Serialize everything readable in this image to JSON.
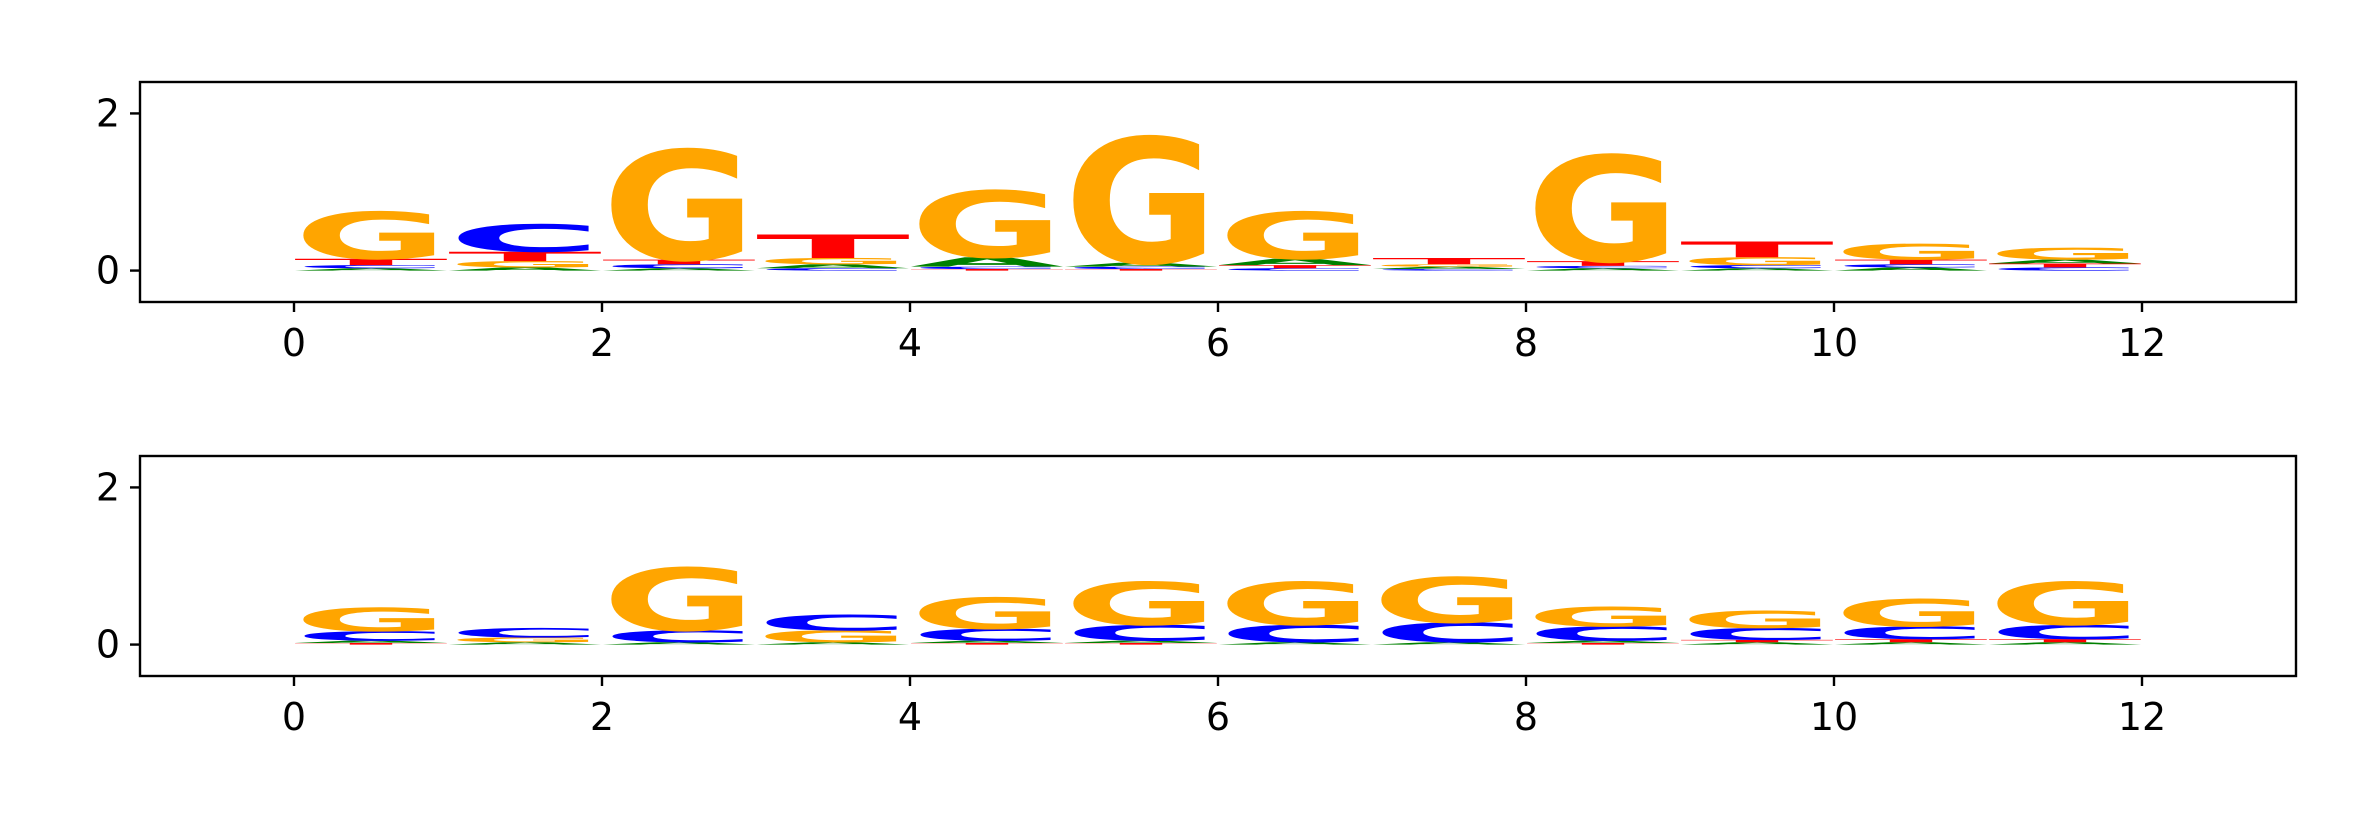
{
  "colors": {
    "A": "#008000",
    "C": "#0000ff",
    "G": "#ffa500",
    "T": "#ff0000"
  },
  "chart_data": [
    {
      "type": "sequence-logo",
      "xlim": [
        -1,
        13
      ],
      "ylim": [
        -0.4,
        2.4
      ],
      "xticks": [
        0,
        2,
        4,
        6,
        8,
        10,
        12
      ],
      "yticks": [
        0,
        2
      ],
      "positions": [
        {
          "x": 0,
          "letters": [
            {
              "base": "A",
              "h": 0.03
            },
            {
              "base": "C",
              "h": 0.04
            },
            {
              "base": "T",
              "h": 0.08
            },
            {
              "base": "G",
              "h": 0.6
            }
          ]
        },
        {
          "x": 1,
          "letters": [
            {
              "base": "A",
              "h": 0.04
            },
            {
              "base": "G",
              "h": 0.08
            },
            {
              "base": "T",
              "h": 0.12
            },
            {
              "base": "C",
              "h": 0.35
            }
          ]
        },
        {
          "x": 2,
          "letters": [
            {
              "base": "A",
              "h": 0.03
            },
            {
              "base": "C",
              "h": 0.05
            },
            {
              "base": "T",
              "h": 0.06
            },
            {
              "base": "G",
              "h": 1.4
            }
          ]
        },
        {
          "x": 3,
          "letters": [
            {
              "base": "C",
              "h": 0.03
            },
            {
              "base": "A",
              "h": 0.05
            },
            {
              "base": "G",
              "h": 0.08
            },
            {
              "base": "T",
              "h": 0.3
            }
          ]
        },
        {
          "x": 4,
          "letters": [
            {
              "base": "T",
              "h": 0.02
            },
            {
              "base": "C",
              "h": 0.03
            },
            {
              "base": "A",
              "h": 0.12
            },
            {
              "base": "G",
              "h": 0.85
            }
          ]
        },
        {
          "x": 5,
          "letters": [
            {
              "base": "T",
              "h": 0.02
            },
            {
              "base": "C",
              "h": 0.03
            },
            {
              "base": "A",
              "h": 0.05
            },
            {
              "base": "G",
              "h": 1.6
            }
          ]
        },
        {
          "x": 6,
          "letters": [
            {
              "base": "C",
              "h": 0.03
            },
            {
              "base": "T",
              "h": 0.04
            },
            {
              "base": "A",
              "h": 0.08
            },
            {
              "base": "G",
              "h": 0.6
            }
          ]
        },
        {
          "x": 7,
          "letters": [
            {
              "base": "C",
              "h": 0.02
            },
            {
              "base": "A",
              "h": 0.03
            },
            {
              "base": "G",
              "h": 0.03
            },
            {
              "base": "T",
              "h": 0.08
            }
          ]
        },
        {
          "x": 8,
          "letters": [
            {
              "base": "A",
              "h": 0.03
            },
            {
              "base": "C",
              "h": 0.03
            },
            {
              "base": "T",
              "h": 0.06
            },
            {
              "base": "G",
              "h": 1.35
            }
          ]
        },
        {
          "x": 9,
          "letters": [
            {
              "base": "A",
              "h": 0.03
            },
            {
              "base": "C",
              "h": 0.04
            },
            {
              "base": "G",
              "h": 0.1
            },
            {
              "base": "T",
              "h": 0.2
            }
          ]
        },
        {
          "x": 10,
          "letters": [
            {
              "base": "A",
              "h": 0.04
            },
            {
              "base": "C",
              "h": 0.04
            },
            {
              "base": "T",
              "h": 0.06
            },
            {
              "base": "G",
              "h": 0.2
            }
          ]
        },
        {
          "x": 11,
          "letters": [
            {
              "base": "C",
              "h": 0.04
            },
            {
              "base": "T",
              "h": 0.05
            },
            {
              "base": "A",
              "h": 0.05
            },
            {
              "base": "G",
              "h": 0.15
            }
          ]
        }
      ]
    },
    {
      "type": "sequence-logo",
      "xlim": [
        -1,
        13
      ],
      "ylim": [
        -0.4,
        2.4
      ],
      "xticks": [
        0,
        2,
        4,
        6,
        8,
        10,
        12
      ],
      "yticks": [
        0,
        2
      ],
      "positions": [
        {
          "x": 0,
          "letters": [
            {
              "base": "T",
              "h": 0.02
            },
            {
              "base": "A",
              "h": 0.03
            },
            {
              "base": "C",
              "h": 0.12
            },
            {
              "base": "G",
              "h": 0.3
            }
          ]
        },
        {
          "x": 1,
          "letters": [
            {
              "base": "A",
              "h": 0.03
            },
            {
              "base": "G",
              "h": 0.06
            },
            {
              "base": "C",
              "h": 0.12
            }
          ]
        },
        {
          "x": 2,
          "letters": [
            {
              "base": "A",
              "h": 0.03
            },
            {
              "base": "C",
              "h": 0.15
            },
            {
              "base": "G",
              "h": 0.8
            }
          ]
        },
        {
          "x": 3,
          "letters": [
            {
              "base": "A",
              "h": 0.03
            },
            {
              "base": "G",
              "h": 0.15
            },
            {
              "base": "C",
              "h": 0.2
            }
          ]
        },
        {
          "x": 4,
          "letters": [
            {
              "base": "T",
              "h": 0.02
            },
            {
              "base": "A",
              "h": 0.03
            },
            {
              "base": "C",
              "h": 0.15
            },
            {
              "base": "G",
              "h": 0.4
            }
          ]
        },
        {
          "x": 5,
          "letters": [
            {
              "base": "T",
              "h": 0.02
            },
            {
              "base": "A",
              "h": 0.03
            },
            {
              "base": "C",
              "h": 0.2
            },
            {
              "base": "G",
              "h": 0.55
            }
          ]
        },
        {
          "x": 6,
          "letters": [
            {
              "base": "A",
              "h": 0.03
            },
            {
              "base": "C",
              "h": 0.22
            },
            {
              "base": "G",
              "h": 0.55
            }
          ]
        },
        {
          "x": 7,
          "letters": [
            {
              "base": "A",
              "h": 0.03
            },
            {
              "base": "C",
              "h": 0.25
            },
            {
              "base": "G",
              "h": 0.58
            }
          ]
        },
        {
          "x": 8,
          "letters": [
            {
              "base": "T",
              "h": 0.02
            },
            {
              "base": "A",
              "h": 0.03
            },
            {
              "base": "C",
              "h": 0.18
            },
            {
              "base": "G",
              "h": 0.25
            }
          ]
        },
        {
          "x": 9,
          "letters": [
            {
              "base": "A",
              "h": 0.03
            },
            {
              "base": "T",
              "h": 0.03
            },
            {
              "base": "C",
              "h": 0.15
            },
            {
              "base": "G",
              "h": 0.22
            }
          ]
        },
        {
          "x": 10,
          "letters": [
            {
              "base": "A",
              "h": 0.03
            },
            {
              "base": "T",
              "h": 0.04
            },
            {
              "base": "C",
              "h": 0.16
            },
            {
              "base": "G",
              "h": 0.35
            }
          ]
        },
        {
          "x": 11,
          "letters": [
            {
              "base": "A",
              "h": 0.03
            },
            {
              "base": "T",
              "h": 0.04
            },
            {
              "base": "C",
              "h": 0.18
            },
            {
              "base": "G",
              "h": 0.55
            }
          ]
        }
      ]
    }
  ]
}
